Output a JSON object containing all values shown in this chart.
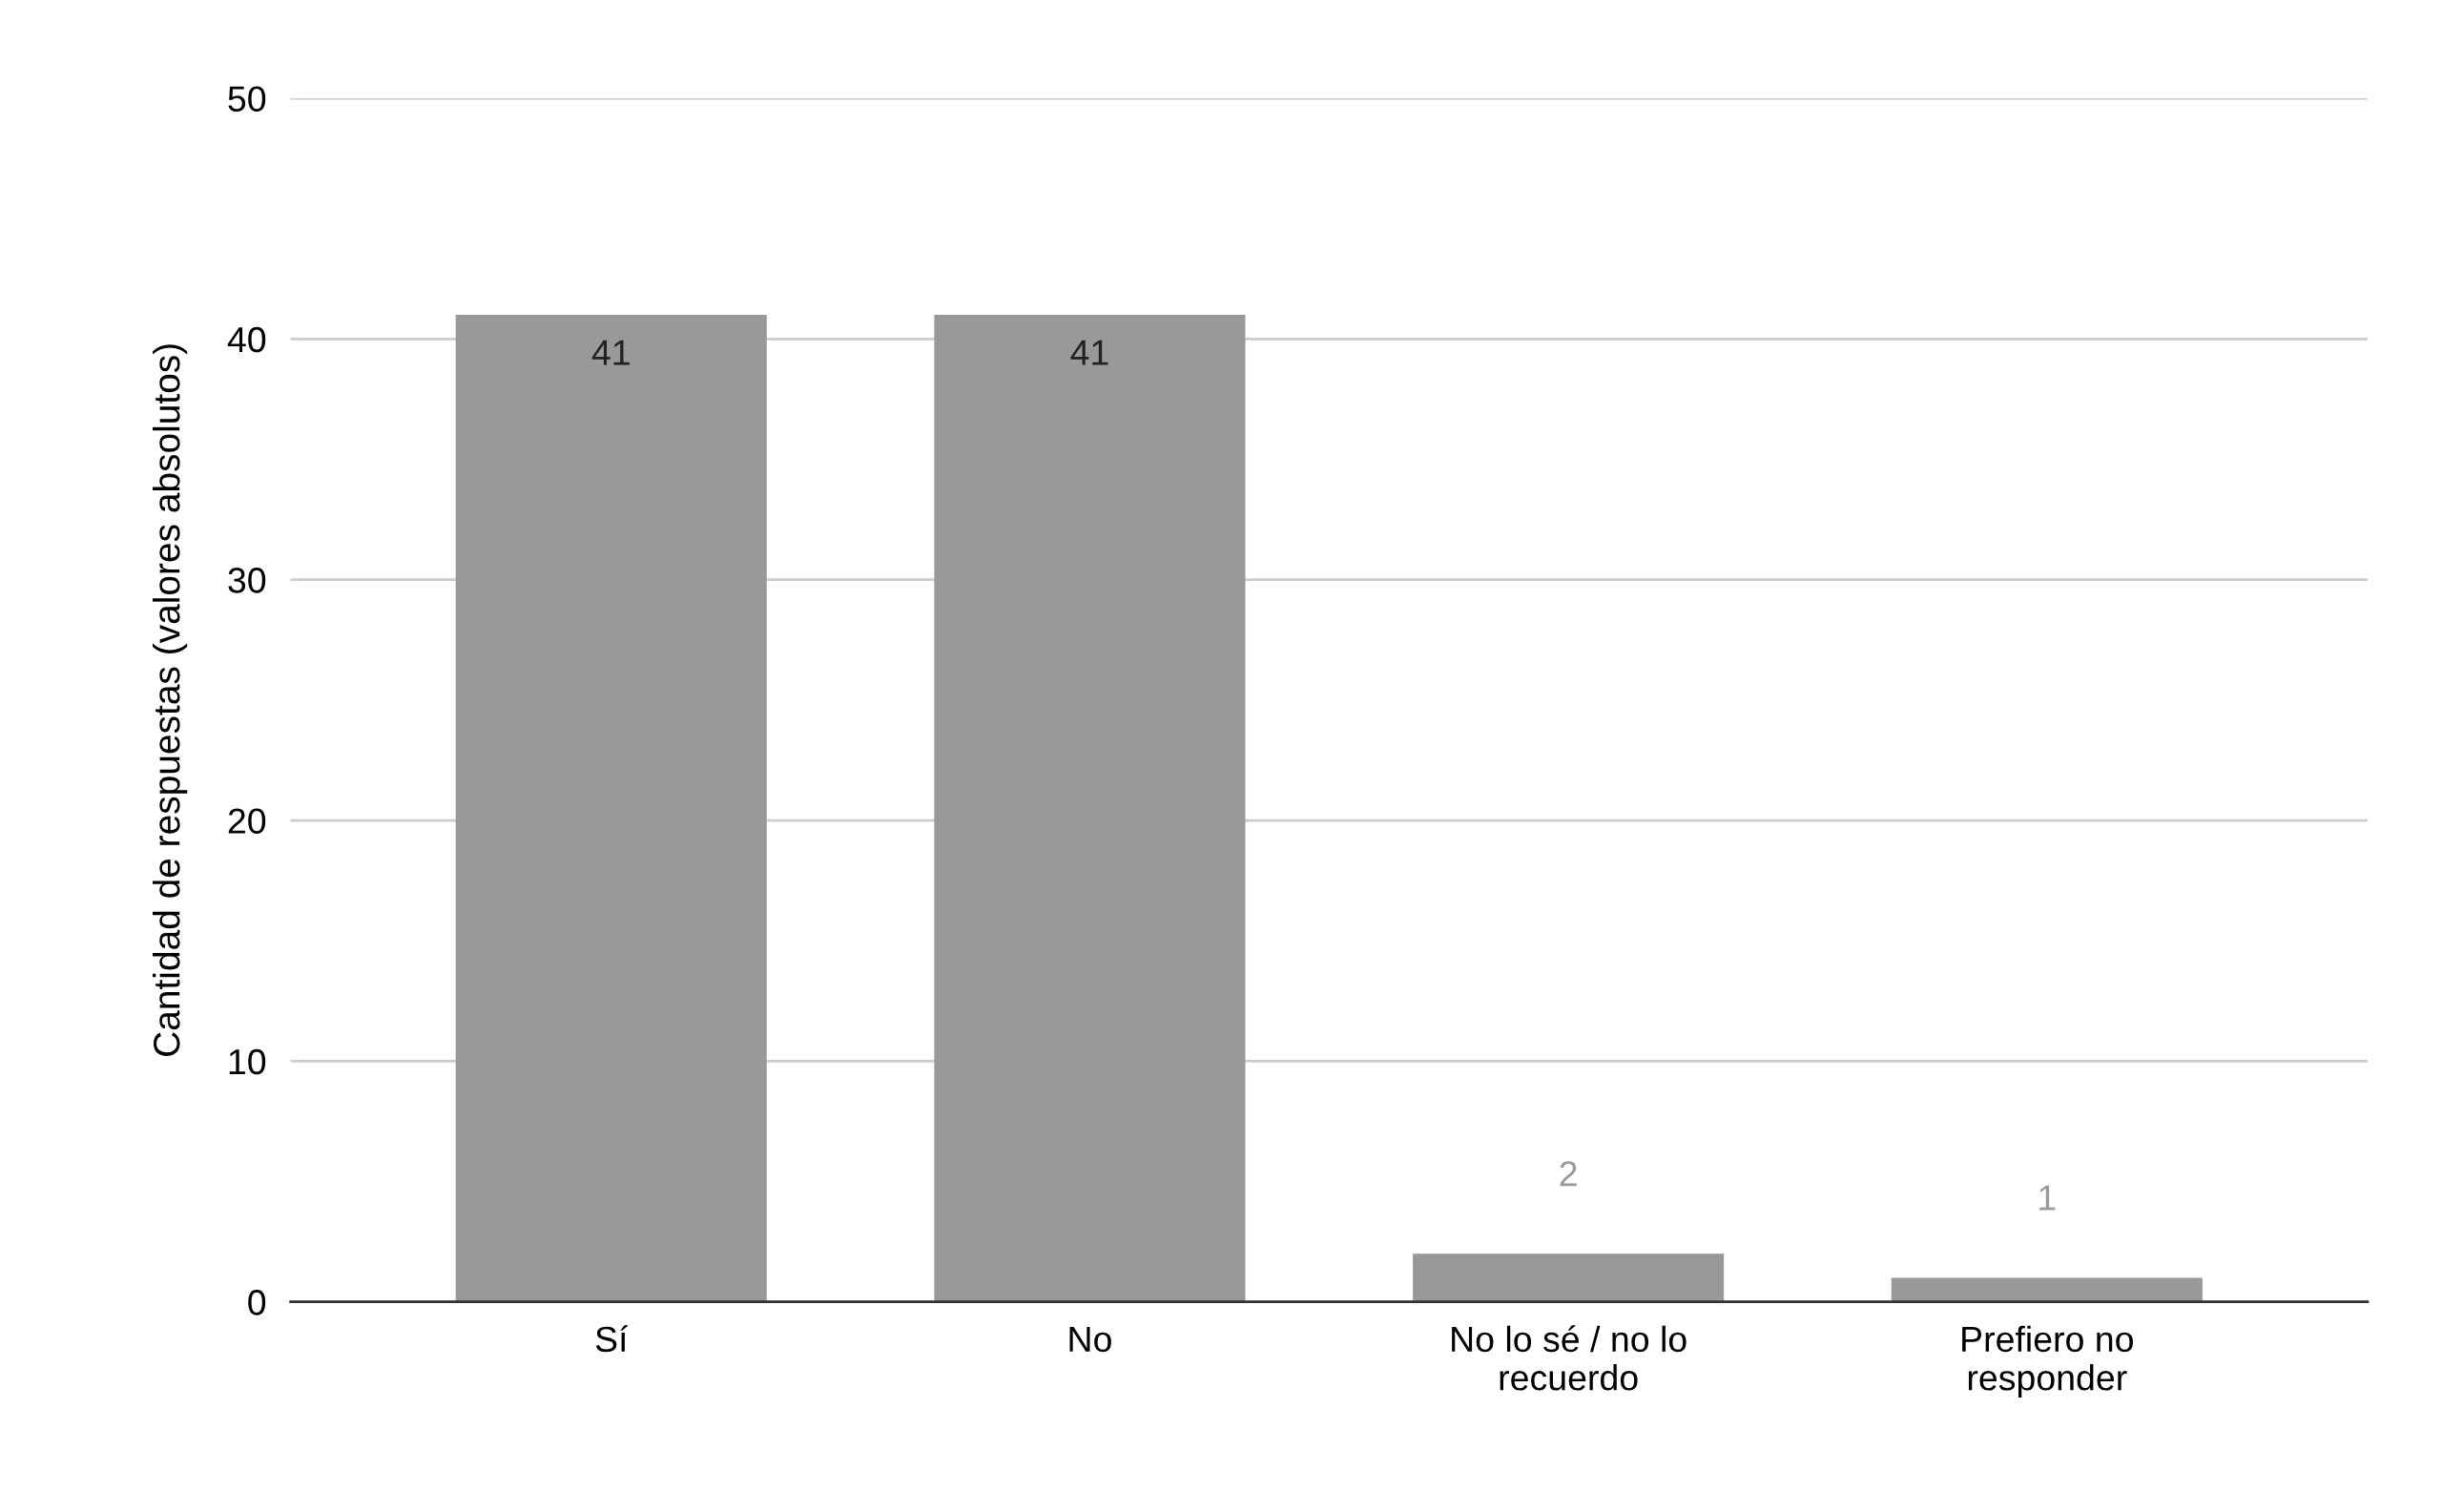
{
  "chart_data": {
    "type": "bar",
    "ylabel": "Cantidad de respuestas (valores absolutos)",
    "categories": [
      "Sí",
      "No",
      "No lo sé / no lo\nrecuerdo",
      "Prefiero no\nresponder"
    ],
    "values": [
      41,
      41,
      2,
      1
    ],
    "color": "#999999",
    "ylim": [
      0,
      50
    ],
    "yticks": [
      0,
      10,
      20,
      30,
      40,
      50
    ],
    "grid": "y",
    "data_labels": true
  }
}
